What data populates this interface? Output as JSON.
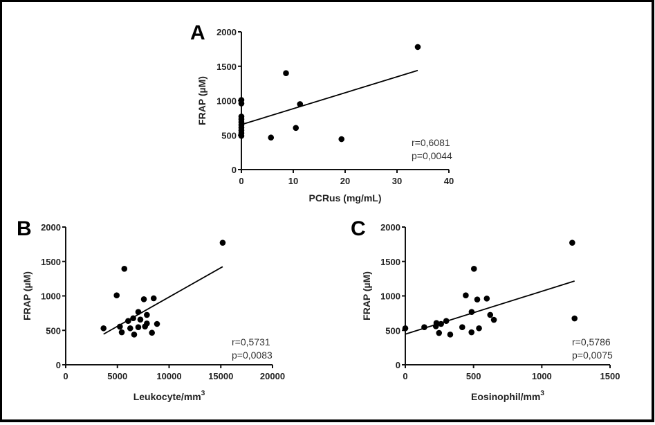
{
  "figure": {
    "panels": [
      "A",
      "B",
      "C"
    ]
  },
  "chart_data": [
    {
      "type": "scatter",
      "panel_label": "A",
      "title": "",
      "xlabel": "PCRus (mg/mL)",
      "xlabel_sup": "",
      "ylabel": "FRAP (µM)",
      "xlim": [
        0,
        40
      ],
      "ylim": [
        0,
        2000
      ],
      "xticks": [
        0,
        10,
        20,
        30,
        40
      ],
      "yticks": [
        0,
        500,
        1000,
        1500,
        2000
      ],
      "grid": false,
      "points": [
        {
          "x": 34.0,
          "y": 1780
        },
        {
          "x": 8.6,
          "y": 1400
        },
        {
          "x": 11.3,
          "y": 950
        },
        {
          "x": 10.5,
          "y": 605
        },
        {
          "x": 5.7,
          "y": 465
        },
        {
          "x": 19.3,
          "y": 442
        },
        {
          "x": 0,
          "y": 1010
        },
        {
          "x": 0,
          "y": 960
        },
        {
          "x": 0,
          "y": 770
        },
        {
          "x": 0,
          "y": 730
        },
        {
          "x": 0,
          "y": 690
        },
        {
          "x": 0,
          "y": 650
        },
        {
          "x": 0,
          "y": 610
        },
        {
          "x": 0,
          "y": 570
        },
        {
          "x": 0,
          "y": 530
        },
        {
          "x": 0,
          "y": 490
        }
      ],
      "regression_line": {
        "x0": 0,
        "y0": 653,
        "x1": 34,
        "y1": 1440
      },
      "annotations": [
        "r=0,6081",
        "p=0,0044"
      ]
    },
    {
      "type": "scatter",
      "panel_label": "B",
      "title": "",
      "xlabel": "Leukocyte/mm",
      "xlabel_sup": "3",
      "ylabel": "FRAP (µM)",
      "xlim": [
        0,
        20000
      ],
      "ylim": [
        0,
        2000
      ],
      "xticks": [
        0,
        5000,
        10000,
        15000,
        20000
      ],
      "yticks": [
        0,
        500,
        1000,
        1500,
        2000
      ],
      "grid": false,
      "points": [
        {
          "x": 3660,
          "y": 530
        },
        {
          "x": 4930,
          "y": 1008
        },
        {
          "x": 5670,
          "y": 1394
        },
        {
          "x": 5240,
          "y": 553
        },
        {
          "x": 5420,
          "y": 472
        },
        {
          "x": 6240,
          "y": 530
        },
        {
          "x": 6040,
          "y": 636
        },
        {
          "x": 6530,
          "y": 676
        },
        {
          "x": 6620,
          "y": 439
        },
        {
          "x": 7020,
          "y": 767
        },
        {
          "x": 7020,
          "y": 546
        },
        {
          "x": 7220,
          "y": 656
        },
        {
          "x": 7560,
          "y": 952
        },
        {
          "x": 7670,
          "y": 556
        },
        {
          "x": 7850,
          "y": 724
        },
        {
          "x": 7850,
          "y": 600
        },
        {
          "x": 8340,
          "y": 465
        },
        {
          "x": 8510,
          "y": 965
        },
        {
          "x": 8830,
          "y": 593
        },
        {
          "x": 15180,
          "y": 1772
        }
      ],
      "regression_line": {
        "x0": 3660,
        "y0": 445,
        "x1": 15180,
        "y1": 1424
      },
      "annotations": [
        "r=0,5731",
        "p=0,0083"
      ]
    },
    {
      "type": "scatter",
      "panel_label": "C",
      "title": "",
      "xlabel": "Eosinophil/mm",
      "xlabel_sup": "3",
      "ylabel": "FRAP (µM)",
      "xlim": [
        0,
        1500
      ],
      "ylim": [
        0,
        2000
      ],
      "xticks": [
        0,
        500,
        1000,
        1500
      ],
      "yticks": [
        0,
        500,
        1000,
        1500,
        2000
      ],
      "grid": false,
      "points": [
        {
          "x": 0,
          "y": 530
        },
        {
          "x": 139,
          "y": 546
        },
        {
          "x": 228,
          "y": 606
        },
        {
          "x": 224,
          "y": 560
        },
        {
          "x": 247,
          "y": 462
        },
        {
          "x": 262,
          "y": 593
        },
        {
          "x": 300,
          "y": 636
        },
        {
          "x": 329,
          "y": 439
        },
        {
          "x": 417,
          "y": 546
        },
        {
          "x": 443,
          "y": 1008
        },
        {
          "x": 486,
          "y": 767
        },
        {
          "x": 485,
          "y": 472
        },
        {
          "x": 503,
          "y": 1394
        },
        {
          "x": 527,
          "y": 948
        },
        {
          "x": 540,
          "y": 530
        },
        {
          "x": 597,
          "y": 962
        },
        {
          "x": 622,
          "y": 724
        },
        {
          "x": 649,
          "y": 653
        },
        {
          "x": 1223,
          "y": 1772
        },
        {
          "x": 1240,
          "y": 673
        }
      ],
      "regression_line": {
        "x0": 0,
        "y0": 445,
        "x1": 1240,
        "y1": 1216
      },
      "annotations": [
        "r=0,5786",
        "p=0,0075"
      ]
    }
  ]
}
